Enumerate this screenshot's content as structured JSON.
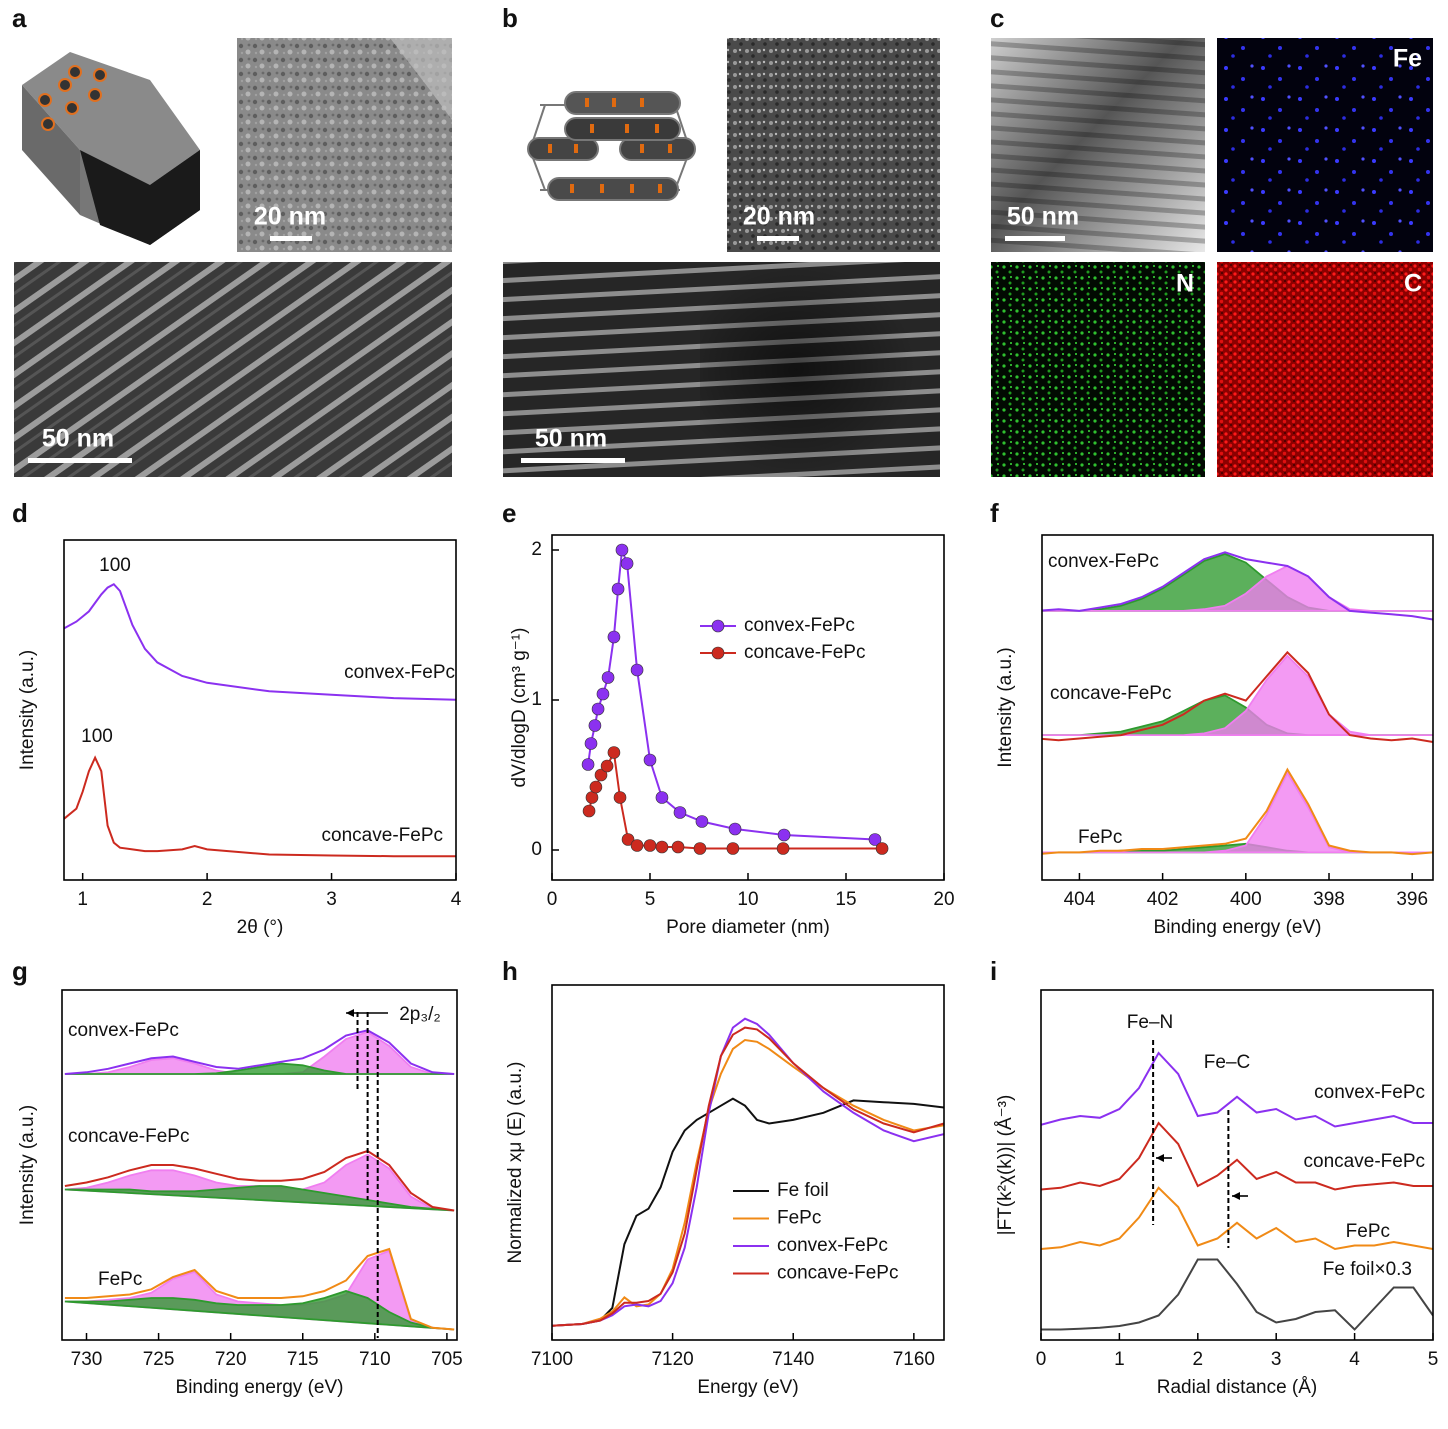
{
  "panel_labels": [
    "a",
    "b",
    "c",
    "d",
    "e",
    "f",
    "g",
    "h",
    "i"
  ],
  "images": [
    {
      "scale_bar": "20 nm"
    },
    {
      "scale_bar": "50 nm"
    },
    {
      "scale_bar": "20 nm"
    },
    {
      "scale_bar": "50 nm"
    },
    {
      "scale_bar": "50 nm"
    }
  ],
  "element_maps": [
    "Fe",
    "N",
    "C"
  ],
  "chart_data": [
    {
      "type": "line",
      "xlabel": "2θ (°)",
      "ylabel": "Intensity (a.u.)",
      "xlim": [
        0.85,
        4
      ],
      "xticks": [
        1,
        2,
        3,
        4
      ],
      "ylim": [
        0,
        10
      ],
      "annotations": [
        "100",
        "100"
      ],
      "x": [
        0.85,
        0.95,
        1.0,
        1.05,
        1.1,
        1.15,
        1.2,
        1.25,
        1.3,
        1.4,
        1.5,
        1.6,
        1.8,
        1.9,
        2.0,
        2.5,
        3.0,
        3.5,
        4.0
      ],
      "series": [
        {
          "name": "convex-FePc",
          "color": "#8b31f0",
          "values": [
            7.4,
            7.6,
            7.75,
            7.9,
            8.15,
            8.4,
            8.6,
            8.7,
            8.5,
            7.5,
            6.8,
            6.4,
            6.0,
            5.9,
            5.8,
            5.55,
            5.45,
            5.35,
            5.3
          ]
        },
        {
          "name": "concave-FePc",
          "color": "#cc2a1f",
          "values": [
            1.8,
            2.1,
            2.6,
            3.2,
            3.6,
            3.2,
            1.6,
            1.1,
            0.95,
            0.9,
            0.85,
            0.85,
            0.9,
            1.0,
            0.9,
            0.75,
            0.72,
            0.7,
            0.7
          ]
        }
      ]
    },
    {
      "type": "scatter",
      "xlabel": "Pore diameter (nm)",
      "ylabel": "dV/dlogD (cm³ g⁻¹)",
      "xlim": [
        0,
        20
      ],
      "xticks": [
        0,
        5,
        10,
        15,
        20
      ],
      "ylim": [
        -0.2,
        2.1
      ],
      "yticks": [
        0,
        1,
        2
      ],
      "legend": "center-right",
      "series": [
        {
          "name": "convex-FePc",
          "color": "#8b31f0",
          "x": [
            1.84,
            1.99,
            2.19,
            2.35,
            2.6,
            2.86,
            3.16,
            3.37,
            3.57,
            3.83,
            4.34,
            5.0,
            5.61,
            6.53,
            7.65,
            9.34,
            11.84,
            16.48
          ],
          "values": [
            0.57,
            0.71,
            0.83,
            0.94,
            1.04,
            1.15,
            1.42,
            1.74,
            2.0,
            1.91,
            1.2,
            0.6,
            0.35,
            0.25,
            0.19,
            0.14,
            0.1,
            0.07
          ]
        },
        {
          "name": "concave-FePc",
          "color": "#cc2a1f",
          "x": [
            1.89,
            2.04,
            2.24,
            2.5,
            2.81,
            3.16,
            3.47,
            3.88,
            4.34,
            5.0,
            5.61,
            6.43,
            7.55,
            9.23,
            11.79,
            16.84
          ],
          "values": [
            0.26,
            0.35,
            0.42,
            0.5,
            0.56,
            0.65,
            0.35,
            0.07,
            0.03,
            0.03,
            0.02,
            0.02,
            0.01,
            0.01,
            0.01,
            0.01
          ]
        }
      ]
    },
    {
      "type": "area",
      "xlabel": "Binding energy (eV)",
      "ylabel": "Intensity (a.u.)",
      "xlim": [
        404.9,
        395.5
      ],
      "xticks": [
        404,
        402,
        400,
        398,
        396
      ],
      "ylim": [
        0,
        10
      ],
      "x": [
        405,
        404.5,
        404,
        403.5,
        403,
        402.5,
        402,
        401.5,
        401,
        400.5,
        400,
        399.5,
        399,
        398.5,
        398,
        397.5,
        397,
        396.5,
        396,
        395.5
      ],
      "series": [
        {
          "name": "convex-FePc",
          "color": "#8b31f0",
          "values": [
            7.8,
            7.85,
            7.8,
            7.9,
            8.0,
            8.2,
            8.5,
            8.9,
            9.3,
            9.5,
            9.3,
            9.2,
            9.1,
            8.8,
            8.2,
            7.8,
            7.75,
            7.7,
            7.65,
            7.55
          ],
          "components": [
            {
              "color": "#2e9a2e",
              "values": [
                7.8,
                7.8,
                7.8,
                7.85,
                7.95,
                8.15,
                8.45,
                8.85,
                9.25,
                9.45,
                9.2,
                8.7,
                8.2,
                7.9,
                7.8,
                7.8,
                7.8,
                7.8,
                7.8,
                7.8
              ]
            },
            {
              "color": "#f07ef0",
              "values": [
                7.8,
                7.8,
                7.8,
                7.8,
                7.8,
                7.8,
                7.8,
                7.8,
                7.85,
                7.95,
                8.3,
                8.8,
                9.1,
                8.8,
                8.2,
                7.85,
                7.8,
                7.8,
                7.8,
                7.8
              ]
            }
          ]
        },
        {
          "name": "concave-FePc",
          "color": "#cc2a1f",
          "values": [
            4.1,
            4.05,
            4.1,
            4.15,
            4.2,
            4.35,
            4.5,
            4.8,
            5.2,
            5.4,
            5.2,
            5.9,
            6.6,
            6.0,
            4.8,
            4.2,
            4.1,
            4.05,
            4.1,
            4.0
          ],
          "components": [
            {
              "color": "#2e9a2e",
              "values": [
                4.2,
                4.2,
                4.2,
                4.25,
                4.3,
                4.45,
                4.6,
                4.9,
                5.2,
                5.35,
                5.0,
                4.5,
                4.25,
                4.2,
                4.2,
                4.2,
                4.2,
                4.2,
                4.2,
                4.2
              ]
            },
            {
              "color": "#f07ef0",
              "values": [
                4.2,
                4.2,
                4.2,
                4.2,
                4.2,
                4.2,
                4.2,
                4.2,
                4.25,
                4.4,
                4.9,
                5.8,
                6.5,
                5.9,
                4.8,
                4.3,
                4.2,
                4.2,
                4.2,
                4.2
              ]
            }
          ]
        },
        {
          "name": "FePc",
          "color": "#f08a16",
          "values": [
            0.75,
            0.8,
            0.8,
            0.85,
            0.85,
            0.9,
            0.9,
            0.95,
            1.0,
            1.05,
            1.2,
            2.0,
            3.2,
            2.2,
            1.0,
            0.85,
            0.8,
            0.8,
            0.75,
            0.8
          ],
          "components": [
            {
              "color": "#2e9a2e",
              "values": [
                0.8,
                0.8,
                0.8,
                0.8,
                0.85,
                0.85,
                0.85,
                0.9,
                0.95,
                1.0,
                1.05,
                0.95,
                0.85,
                0.8,
                0.8,
                0.8,
                0.8,
                0.8,
                0.8,
                0.8
              ]
            },
            {
              "color": "#f07ef0",
              "values": [
                0.8,
                0.8,
                0.8,
                0.8,
                0.8,
                0.8,
                0.8,
                0.8,
                0.8,
                0.85,
                1.0,
                1.9,
                3.1,
                2.1,
                0.95,
                0.8,
                0.8,
                0.8,
                0.8,
                0.8
              ]
            }
          ]
        }
      ]
    },
    {
      "type": "area",
      "xlabel": "Binding energy (eV)",
      "ylabel": "Intensity (a.u.)",
      "xlim": [
        731.7,
        704.3
      ],
      "xticks": [
        730,
        725,
        720,
        715,
        710,
        705
      ],
      "ylim": [
        0,
        10
      ],
      "annotations": [
        "2p₃/₂"
      ],
      "reference_lines": [
        711.2,
        710.5,
        709.8
      ],
      "x": [
        731.5,
        730,
        728.5,
        727,
        725.5,
        724,
        722.5,
        721,
        719.5,
        718,
        716.5,
        715,
        713.5,
        712,
        710.5,
        709,
        707.5,
        706,
        704.5
      ],
      "series": [
        {
          "name": "convex-FePc",
          "color": "#8b31f0",
          "values": [
            7.6,
            7.65,
            7.75,
            7.9,
            8.05,
            8.1,
            7.95,
            7.8,
            7.75,
            7.85,
            7.95,
            8.05,
            8.3,
            8.7,
            8.85,
            8.5,
            7.9,
            7.65,
            7.6
          ],
          "components": [
            {
              "color": "#f07ef0",
              "values": [
                7.6,
                7.6,
                7.65,
                7.8,
                8.0,
                8.05,
                7.9,
                7.7,
                7.6,
                7.6,
                7.6,
                7.65,
                8.1,
                8.6,
                8.8,
                8.4,
                7.8,
                7.6,
                7.6
              ]
            },
            {
              "color": "#2e9a2e",
              "values": [
                7.6,
                7.6,
                7.6,
                7.6,
                7.6,
                7.6,
                7.6,
                7.62,
                7.7,
                7.8,
                7.9,
                7.85,
                7.7,
                7.6,
                7.6,
                7.6,
                7.6,
                7.6,
                7.6
              ]
            }
          ]
        },
        {
          "name": "concave-FePc",
          "color": "#cc2a1f",
          "values": [
            4.4,
            4.5,
            4.65,
            4.85,
            5.0,
            5.0,
            4.9,
            4.75,
            4.6,
            4.55,
            4.55,
            4.6,
            4.8,
            5.2,
            5.4,
            5.0,
            4.2,
            3.8,
            3.7
          ],
          "components": [
            {
              "color": "#f07ef0",
              "values": [
                4.3,
                4.35,
                4.5,
                4.7,
                4.85,
                4.85,
                4.7,
                4.5,
                4.4,
                4.4,
                4.35,
                4.3,
                4.5,
                5.0,
                5.3,
                4.9,
                4.1,
                3.75,
                3.7
              ]
            },
            {
              "color": "#2e9a2e",
              "values": [
                4.3,
                4.3,
                4.3,
                4.3,
                4.25,
                4.25,
                4.25,
                4.3,
                4.35,
                4.4,
                4.4,
                4.3,
                4.2,
                4.1,
                4.0,
                3.9,
                3.8,
                3.75,
                3.7
              ]
            }
          ]
        },
        {
          "name": "FePc",
          "color": "#f08a16",
          "values": [
            1.2,
            1.2,
            1.25,
            1.3,
            1.45,
            1.8,
            2.0,
            1.4,
            1.2,
            1.2,
            1.2,
            1.25,
            1.4,
            1.7,
            2.4,
            2.6,
            0.6,
            0.35,
            0.3
          ],
          "components": [
            {
              "color": "#f07ef0",
              "values": [
                1.1,
                1.1,
                1.15,
                1.2,
                1.35,
                1.75,
                1.95,
                1.3,
                1.1,
                1.05,
                1.0,
                1.0,
                1.1,
                1.3,
                2.3,
                2.55,
                0.55,
                0.35,
                0.3
              ]
            },
            {
              "color": "#2e9a2e",
              "values": [
                1.1,
                1.1,
                1.1,
                1.15,
                1.2,
                1.2,
                1.15,
                1.05,
                1.0,
                1.0,
                1.0,
                1.05,
                1.2,
                1.4,
                1.2,
                0.8,
                0.5,
                0.35,
                0.3
              ]
            }
          ]
        }
      ]
    },
    {
      "type": "line",
      "xlabel": "Energy (eV)",
      "ylabel": "Normalized xμ (E) (a.u.)",
      "xlim": [
        7100,
        7165
      ],
      "xticks": [
        7100,
        7120,
        7140,
        7160
      ],
      "ylim": [
        0,
        10
      ],
      "legend": "lower-right",
      "x": [
        7100,
        7105,
        7108,
        7110,
        7112,
        7114,
        7116,
        7118,
        7120,
        7122,
        7124,
        7126,
        7128,
        7130,
        7132,
        7134,
        7136,
        7140,
        7145,
        7150,
        7155,
        7160,
        7165
      ],
      "series": [
        {
          "name": "Fe foil",
          "color": "#111111",
          "values": [
            0.4,
            0.45,
            0.55,
            0.9,
            2.7,
            3.5,
            3.7,
            4.3,
            5.3,
            5.9,
            6.2,
            6.4,
            6.6,
            6.8,
            6.6,
            6.2,
            6.1,
            6.2,
            6.4,
            6.75,
            6.7,
            6.65,
            6.55
          ]
        },
        {
          "name": "FePc",
          "color": "#f08a16",
          "values": [
            0.4,
            0.45,
            0.6,
            0.8,
            1.2,
            0.95,
            1.0,
            1.3,
            2.0,
            3.3,
            5.0,
            6.5,
            7.5,
            8.2,
            8.45,
            8.4,
            8.2,
            7.7,
            7.1,
            6.6,
            6.2,
            5.9,
            6.05
          ]
        },
        {
          "name": "convex-FePc",
          "color": "#8b31f0",
          "values": [
            0.4,
            0.45,
            0.55,
            0.7,
            0.95,
            1.0,
            0.95,
            1.1,
            1.6,
            2.6,
            4.3,
            6.4,
            8.0,
            8.8,
            9.05,
            8.9,
            8.6,
            7.8,
            7.0,
            6.4,
            5.9,
            5.6,
            5.8
          ]
        },
        {
          "name": "concave-FePc",
          "color": "#cc2a1f",
          "values": [
            0.4,
            0.45,
            0.55,
            0.75,
            1.05,
            1.05,
            1.1,
            1.3,
            1.9,
            3.0,
            4.8,
            6.6,
            8.0,
            8.6,
            8.8,
            8.75,
            8.5,
            7.8,
            7.1,
            6.5,
            6.1,
            5.85,
            6.1
          ]
        }
      ]
    },
    {
      "type": "line",
      "xlabel": "Radial distance (Å)",
      "ylabel": "|FT(k²χ(k))| (Å⁻³)",
      "xlim": [
        0,
        5
      ],
      "xticks": [
        0,
        1,
        2,
        3,
        4,
        5
      ],
      "ylim": [
        0,
        10
      ],
      "annotations": [
        "Fe–N",
        "Fe–C"
      ],
      "reference_lines": [
        1.43,
        2.39
      ],
      "x": [
        0,
        0.25,
        0.5,
        0.75,
        1.0,
        1.25,
        1.5,
        1.75,
        2.0,
        2.25,
        2.5,
        2.75,
        3.0,
        3.25,
        3.5,
        3.75,
        4.0,
        4.25,
        4.5,
        4.75,
        5.0
      ],
      "series": [
        {
          "name": "convex-FePc",
          "color": "#8b31f0",
          "values": [
            6.15,
            6.3,
            6.4,
            6.35,
            6.6,
            7.2,
            8.2,
            7.6,
            6.4,
            6.5,
            6.95,
            6.5,
            6.6,
            6.3,
            6.4,
            6.1,
            6.2,
            6.3,
            6.4,
            6.2,
            6.2
          ]
        },
        {
          "name": "concave-FePc",
          "color": "#cc2a1f",
          "values": [
            4.3,
            4.35,
            4.5,
            4.4,
            4.6,
            5.2,
            6.2,
            5.6,
            4.4,
            4.7,
            5.15,
            4.6,
            4.8,
            4.5,
            4.5,
            4.3,
            4.4,
            4.45,
            4.5,
            4.4,
            4.4
          ]
        },
        {
          "name": "FePc",
          "color": "#f08a16",
          "values": [
            2.6,
            2.65,
            2.8,
            2.7,
            2.9,
            3.5,
            4.35,
            3.8,
            2.7,
            2.9,
            3.35,
            2.9,
            3.2,
            2.8,
            2.9,
            2.6,
            2.7,
            2.7,
            2.8,
            2.7,
            2.6
          ]
        },
        {
          "name": "Fe foil×0.3",
          "color": "#444444",
          "values": [
            0.3,
            0.3,
            0.32,
            0.35,
            0.4,
            0.5,
            0.7,
            1.3,
            2.3,
            2.3,
            1.6,
            0.8,
            0.5,
            0.6,
            0.8,
            0.85,
            0.3,
            0.9,
            1.5,
            1.5,
            0.7
          ]
        }
      ]
    }
  ]
}
